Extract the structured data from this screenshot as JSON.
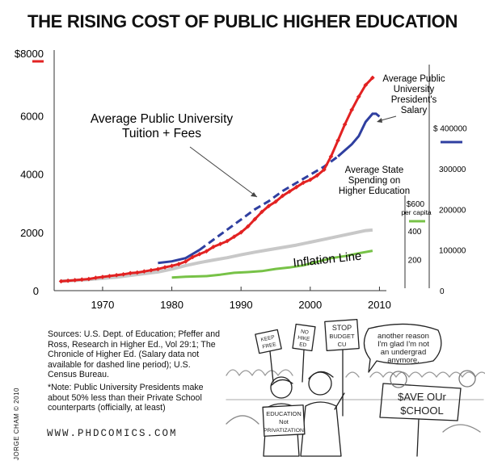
{
  "title": "THE RISING COST OF PUBLIC HIGHER EDUCATION",
  "chart_data": {
    "type": "line",
    "x_axis": {
      "ticks": [
        1970,
        1980,
        1990,
        2000,
        2010
      ],
      "range": [
        1963,
        2011
      ]
    },
    "y_axis_left": {
      "ticks": [
        "0",
        "2000",
        "4000",
        "6000",
        "$8000"
      ],
      "range": [
        0,
        8000
      ]
    },
    "y_axis_spending": {
      "ticks": [
        "200",
        "400"
      ],
      "top_label": "$600",
      "top_sublabel": "per capita",
      "range": [
        0,
        650
      ]
    },
    "y_axis_salary": {
      "ticks": [
        "0",
        "100000",
        "200000",
        "300000",
        "$ 400000"
      ],
      "range": [
        0,
        540000
      ]
    },
    "series": [
      {
        "name": "Average Public University Tuition + Fees",
        "color": "#e22222",
        "axis": "left",
        "markers": true,
        "points": [
          [
            1964,
            320
          ],
          [
            1965,
            340
          ],
          [
            1966,
            360
          ],
          [
            1967,
            380
          ],
          [
            1968,
            400
          ],
          [
            1969,
            440
          ],
          [
            1970,
            470
          ],
          [
            1971,
            500
          ],
          [
            1972,
            530
          ],
          [
            1973,
            560
          ],
          [
            1974,
            600
          ],
          [
            1975,
            620
          ],
          [
            1976,
            660
          ],
          [
            1977,
            700
          ],
          [
            1978,
            740
          ],
          [
            1979,
            800
          ],
          [
            1980,
            850
          ],
          [
            1981,
            910
          ],
          [
            1982,
            1000
          ],
          [
            1983,
            1150
          ],
          [
            1984,
            1250
          ],
          [
            1985,
            1350
          ],
          [
            1986,
            1500
          ],
          [
            1987,
            1600
          ],
          [
            1988,
            1700
          ],
          [
            1989,
            1850
          ],
          [
            1990,
            2000
          ],
          [
            1991,
            2200
          ],
          [
            1992,
            2450
          ],
          [
            1993,
            2700
          ],
          [
            1994,
            2900
          ],
          [
            1995,
            3050
          ],
          [
            1996,
            3250
          ],
          [
            1997,
            3400
          ],
          [
            1998,
            3550
          ],
          [
            1999,
            3700
          ],
          [
            2000,
            3800
          ],
          [
            2001,
            3950
          ],
          [
            2002,
            4150
          ],
          [
            2003,
            4600
          ],
          [
            2004,
            5150
          ],
          [
            2005,
            5700
          ],
          [
            2006,
            6200
          ],
          [
            2007,
            6650
          ],
          [
            2008,
            7050
          ],
          [
            2009,
            7300
          ]
        ]
      },
      {
        "name": "Average Public University President's Salary",
        "color": "#2f3fa0",
        "axis": "salary",
        "dashed_range": [
          1984,
          2004
        ],
        "points": [
          [
            1978,
            68000
          ],
          [
            1980,
            72000
          ],
          [
            1982,
            80000
          ],
          [
            1984,
            100000
          ],
          [
            1986,
            125000
          ],
          [
            1988,
            150000
          ],
          [
            1990,
            175000
          ],
          [
            1992,
            200000
          ],
          [
            1994,
            220000
          ],
          [
            1996,
            245000
          ],
          [
            1998,
            265000
          ],
          [
            2000,
            285000
          ],
          [
            2002,
            305000
          ],
          [
            2004,
            330000
          ],
          [
            2005,
            345000
          ],
          [
            2006,
            360000
          ],
          [
            2007,
            380000
          ],
          [
            2008,
            415000
          ],
          [
            2009,
            435000
          ],
          [
            2009.5,
            435000
          ],
          [
            2010,
            428000
          ]
        ]
      },
      {
        "name": "Average State Spending on Higher Education",
        "color": "#77c247",
        "axis": "spending",
        "points": [
          [
            1980,
            75
          ],
          [
            1982,
            80
          ],
          [
            1983,
            82
          ],
          [
            1985,
            85
          ],
          [
            1987,
            95
          ],
          [
            1989,
            108
          ],
          [
            1991,
            113
          ],
          [
            1993,
            120
          ],
          [
            1995,
            135
          ],
          [
            1997,
            145
          ],
          [
            1999,
            160
          ],
          [
            2001,
            185
          ],
          [
            2003,
            210
          ],
          [
            2005,
            225
          ],
          [
            2007,
            245
          ],
          [
            2009,
            262
          ]
        ]
      },
      {
        "name": "Inflation Line",
        "color": "#c8c8c8",
        "axis": "left",
        "points": [
          [
            1964,
            330
          ],
          [
            1966,
            350
          ],
          [
            1968,
            380
          ],
          [
            1970,
            420
          ],
          [
            1972,
            460
          ],
          [
            1974,
            520
          ],
          [
            1976,
            580
          ],
          [
            1978,
            640
          ],
          [
            1980,
            740
          ],
          [
            1982,
            860
          ],
          [
            1984,
            960
          ],
          [
            1986,
            1050
          ],
          [
            1988,
            1130
          ],
          [
            1990,
            1230
          ],
          [
            1992,
            1320
          ],
          [
            1994,
            1400
          ],
          [
            1996,
            1480
          ],
          [
            1998,
            1560
          ],
          [
            2000,
            1660
          ],
          [
            2002,
            1760
          ],
          [
            2004,
            1860
          ],
          [
            2006,
            1960
          ],
          [
            2008,
            2060
          ],
          [
            2009,
            2080
          ]
        ]
      }
    ]
  },
  "annotations": {
    "tuition": [
      "Average Public University",
      "Tuition + Fees"
    ],
    "salary": [
      "Average Public",
      "University",
      "President's",
      "Salary"
    ],
    "spending": [
      "Average State",
      "Spending on",
      "Higher Education"
    ],
    "inflation": "Inflation Line"
  },
  "sources_text": "Sources: U.S. Dept. of Education; Pfeffer and Ross, Research in Higher Ed., Vol 29:1; The Chronicle of Higher Ed. (Salary data not available for dashed line period); U.S. Census Bureau.",
  "note_text": "*Note: Public University Presidents make about 50% less than their Private School counterparts (officially, at least)",
  "credit": "JORGE CHAM © 2010",
  "website": "WWW.PHDCOMICS.COM",
  "cartoon": {
    "speech_bubble": [
      "another reason",
      "I'm glad I'm not",
      "an undergrad",
      "anymore."
    ],
    "sign_education": [
      "EDUCATION",
      "Not",
      "PRIVATIZATION"
    ],
    "sign_stop": [
      "STOP",
      "BUDGET",
      "CU"
    ],
    "sign_save": [
      "$AVE OUr",
      "$CHOOL"
    ],
    "sign_keep": [
      "KEEP",
      "FREE"
    ],
    "sign_hike": [
      "NO",
      "HIKE",
      "ED"
    ]
  }
}
